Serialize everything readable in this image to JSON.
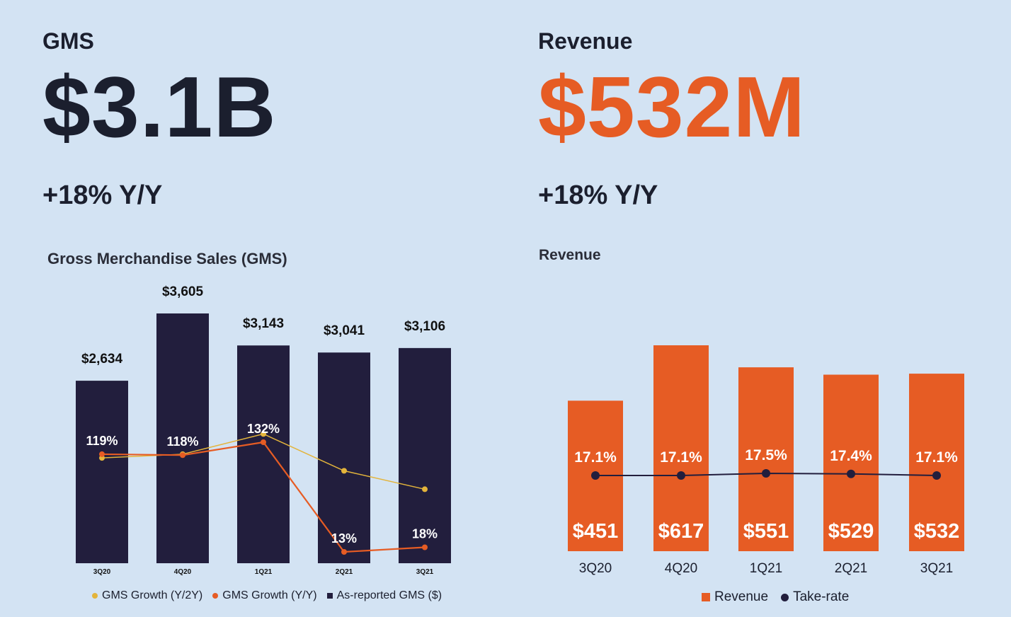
{
  "gms": {
    "label": "GMS",
    "value": "$3.1B",
    "delta": "+18% Y/Y"
  },
  "revenue": {
    "label": "Revenue",
    "value": "$532M",
    "delta": "+18% Y/Y"
  },
  "colors": {
    "navy": "#221e3d",
    "orange": "#e65c24",
    "yellow": "#e3b43b",
    "dark_text": "#1b1f2e",
    "background": "#d3e3f3"
  },
  "chart_data": [
    {
      "type": "bar",
      "title": "Gross Merchandise Sales (GMS)",
      "categories": [
        "3Q20",
        "4Q20",
        "1Q21",
        "2Q21",
        "3Q21"
      ],
      "series": [
        {
          "name": "As-reported GMS ($)",
          "type": "bar",
          "values": [
            2634,
            3605,
            3143,
            3041,
            3106
          ],
          "labels": [
            "$2,634",
            "$3,605",
            "$3,143",
            "$3,041",
            "$3,106"
          ]
        },
        {
          "name": "GMS Growth (Y/Y)",
          "type": "line",
          "values": [
            119,
            118,
            132,
            13,
            18
          ],
          "labels": [
            "119%",
            "118%",
            "132%",
            "13%",
            "18%"
          ]
        },
        {
          "name": "GMS Growth (Y/2Y)",
          "type": "line",
          "values": [
            115,
            119,
            141,
            101,
            81
          ],
          "labels": []
        }
      ],
      "legend": [
        {
          "name": "GMS Growth (Y/2Y)",
          "marker": "dot"
        },
        {
          "name": "GMS Growth (Y/Y)",
          "marker": "dot"
        },
        {
          "name": "As-reported GMS ($)",
          "marker": "square"
        }
      ],
      "legend_position": "bottom",
      "grid": false
    },
    {
      "type": "bar",
      "title": "Revenue",
      "categories": [
        "3Q20",
        "4Q20",
        "1Q21",
        "2Q21",
        "3Q21"
      ],
      "series": [
        {
          "name": "Revenue",
          "type": "bar",
          "values": [
            451,
            617,
            551,
            529,
            532
          ],
          "labels": [
            "$451",
            "$617",
            "$551",
            "$529",
            "$532"
          ]
        },
        {
          "name": "Take-rate",
          "type": "line",
          "values": [
            17.1,
            17.1,
            17.5,
            17.4,
            17.1
          ],
          "labels": [
            "17.1%",
            "17.1%",
            "17.5%",
            "17.4%",
            "17.1%"
          ]
        }
      ],
      "legend": [
        {
          "name": "Revenue",
          "marker": "square"
        },
        {
          "name": "Take-rate",
          "marker": "dot"
        }
      ],
      "legend_position": "bottom",
      "grid": false
    }
  ]
}
